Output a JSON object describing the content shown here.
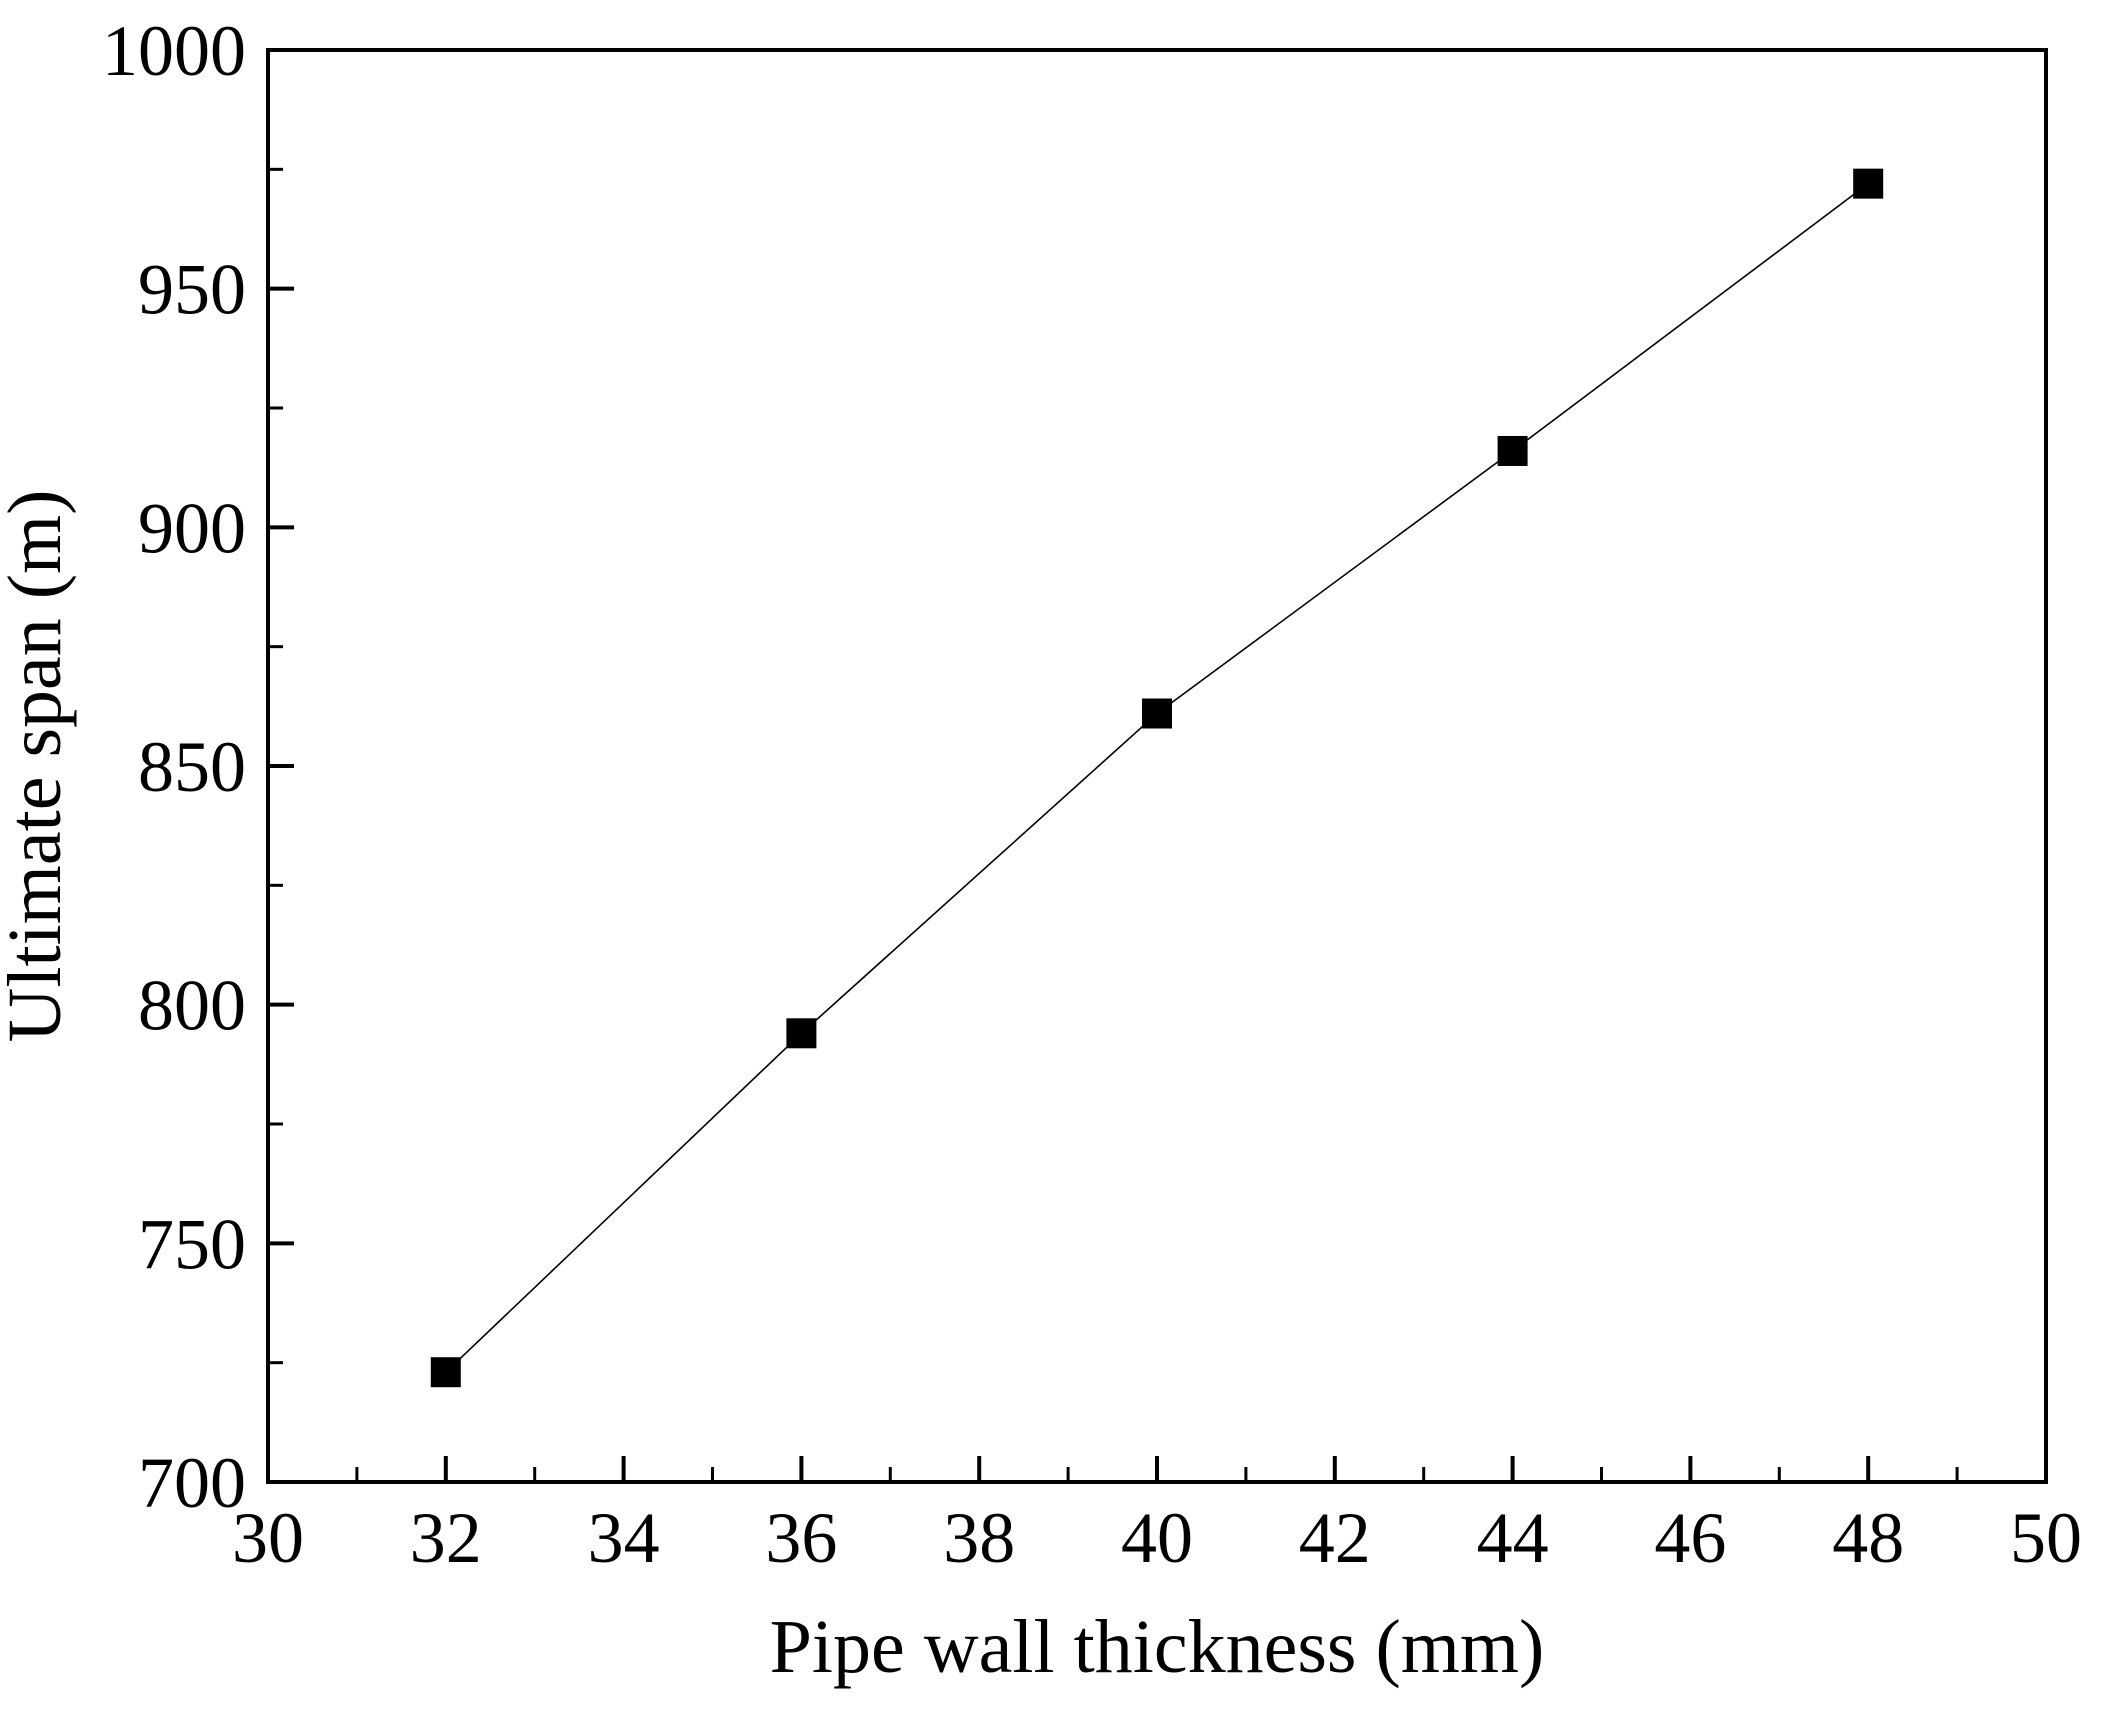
{
  "chart_data": {
    "type": "line",
    "title": "",
    "xlabel": "Pipe wall thickness (mm)",
    "ylabel": "Ultimate span (m)",
    "xlim": [
      30,
      50
    ],
    "ylim": [
      700,
      1000
    ],
    "xticks": [
      30,
      32,
      34,
      36,
      38,
      40,
      42,
      44,
      46,
      48,
      50
    ],
    "yticks": [
      700,
      750,
      800,
      850,
      900,
      950,
      1000
    ],
    "x_minor_step": 1,
    "y_minor_step": 25,
    "grid": false,
    "legend": "none",
    "series": [
      {
        "name": "Ultimate span",
        "marker": "square",
        "color": "#000000",
        "x": [
          32,
          36,
          40,
          44,
          48
        ],
        "y": [
          723,
          794,
          861,
          916,
          972
        ]
      }
    ]
  }
}
